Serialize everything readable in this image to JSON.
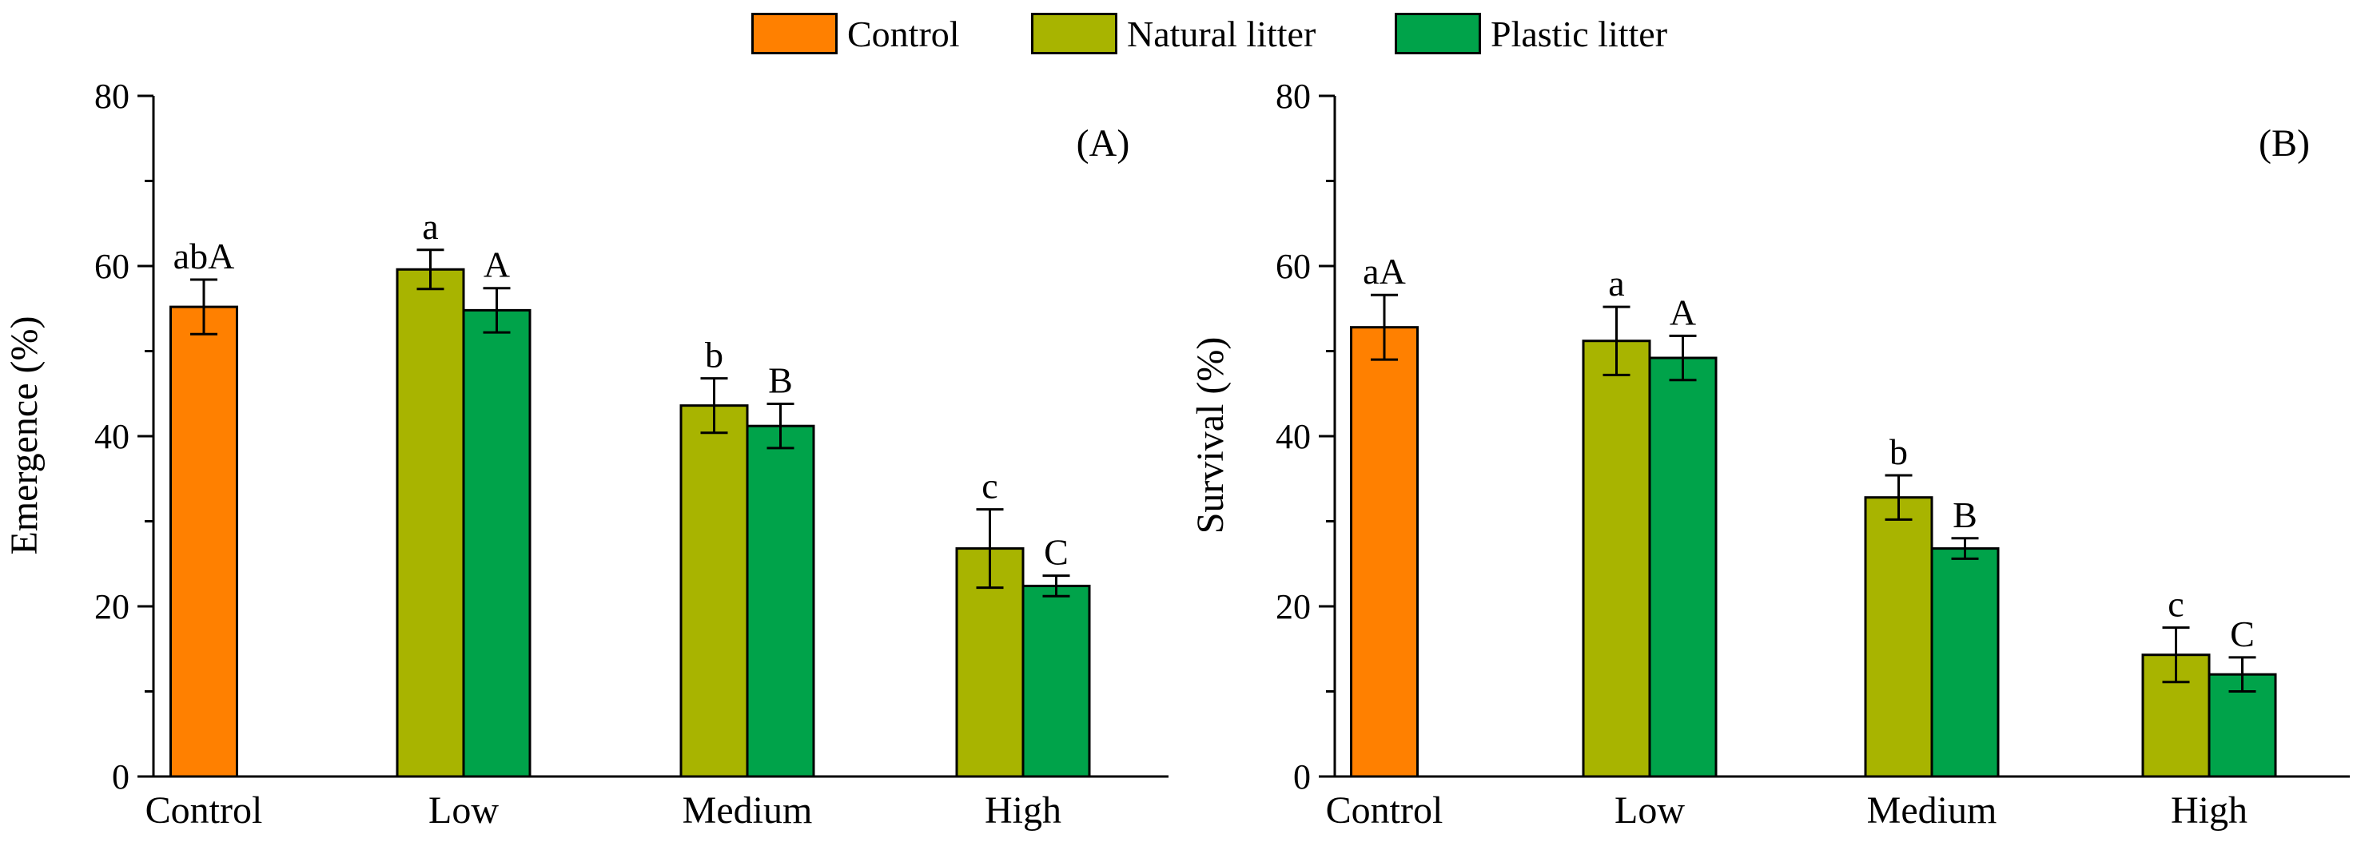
{
  "legend": [
    {
      "label": "Control",
      "color": "#ff8000"
    },
    {
      "label": "Natural litter",
      "color": "#a8b400"
    },
    {
      "label": "Plastic litter",
      "color": "#00a34a"
    }
  ],
  "chart_data": [
    {
      "type": "bar",
      "panel_label": "(A)",
      "ylabel": "Emergence (%)",
      "ylim": [
        0,
        80
      ],
      "yticks": [
        "0",
        "20",
        "40",
        "60",
        "80"
      ],
      "categories": [
        "Control",
        "Low",
        "Medium",
        "High"
      ],
      "bars": [
        {
          "category": "Control",
          "series": "Control",
          "value": 55.2,
          "error": 3.2,
          "letter": "abA"
        },
        {
          "category": "Low",
          "series": "Natural litter",
          "value": 59.6,
          "error": 2.3,
          "letter": "a"
        },
        {
          "category": "Low",
          "series": "Plastic litter",
          "value": 54.8,
          "error": 2.6,
          "letter": "A"
        },
        {
          "category": "Medium",
          "series": "Natural litter",
          "value": 43.6,
          "error": 3.2,
          "letter": "b"
        },
        {
          "category": "Medium",
          "series": "Plastic litter",
          "value": 41.2,
          "error": 2.6,
          "letter": "B"
        },
        {
          "category": "High",
          "series": "Natural litter",
          "value": 26.8,
          "error": 4.6,
          "letter": "c"
        },
        {
          "category": "High",
          "series": "Plastic litter",
          "value": 22.4,
          "error": 1.2,
          "letter": "C"
        }
      ]
    },
    {
      "type": "bar",
      "panel_label": "(B)",
      "ylabel": "Survival (%)",
      "ylim": [
        0,
        80
      ],
      "yticks": [
        "0",
        "20",
        "40",
        "60",
        "80"
      ],
      "categories": [
        "Control",
        "Low",
        "Medium",
        "High"
      ],
      "bars": [
        {
          "category": "Control",
          "series": "Control",
          "value": 52.8,
          "error": 3.8,
          "letter": "aA"
        },
        {
          "category": "Low",
          "series": "Natural litter",
          "value": 51.2,
          "error": 4.0,
          "letter": "a"
        },
        {
          "category": "Low",
          "series": "Plastic litter",
          "value": 49.2,
          "error": 2.6,
          "letter": "A"
        },
        {
          "category": "Medium",
          "series": "Natural litter",
          "value": 32.8,
          "error": 2.6,
          "letter": "b"
        },
        {
          "category": "Medium",
          "series": "Plastic litter",
          "value": 26.8,
          "error": 1.2,
          "letter": "B"
        },
        {
          "category": "High",
          "series": "Natural litter",
          "value": 14.3,
          "error": 3.2,
          "letter": "c"
        },
        {
          "category": "High",
          "series": "Plastic litter",
          "value": 12.0,
          "error": 2.0,
          "letter": "C"
        }
      ]
    }
  ]
}
